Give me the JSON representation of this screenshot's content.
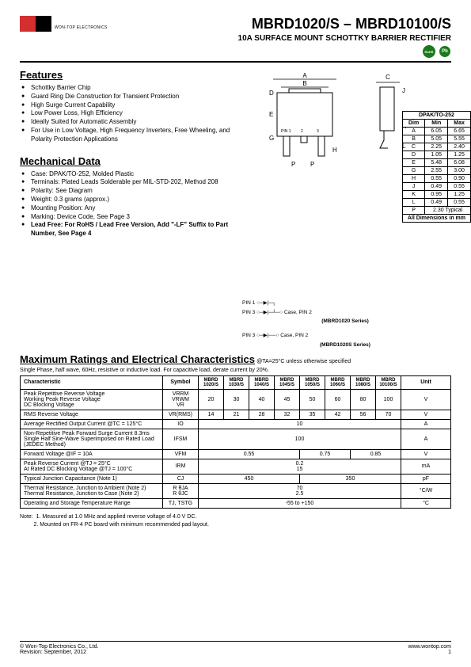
{
  "header": {
    "company": "WON-TOP ELECTRONICS",
    "title": "MBRD1020/S – MBRD10100/S",
    "subtitle": "10A SURFACE MOUNT SCHOTTKY BARRIER RECTIFIER",
    "rohs": "RoHS",
    "pb": "Pb"
  },
  "features": {
    "title": "Features",
    "items": [
      "Schottky Barrier Chip",
      "Guard Ring Die Construction for Transient Protection",
      "High Surge Current Capability",
      "Low Power Loss, High Efficiency",
      "Ideally Suited for Automatic Assembly",
      "For Use in Low Voltage, High Frequency Inverters, Free Wheeling, and Polarity Protection Applications"
    ]
  },
  "mechanical": {
    "title": "Mechanical Data",
    "items": [
      "Case: DPAK/TO-252, Molded Plastic",
      "Terminals: Plated Leads Solderable per MIL-STD-202, Method 208",
      "Polarity: See Diagram",
      "Weight: 0.3 grams (approx.)",
      "Mounting Position: Any",
      "Marking: Device Code, See Page 3"
    ],
    "lead_free": "Lead Free: For RoHS / Lead Free Version, Add \"-LF\" Suffix to Part Number, See Page 4"
  },
  "pin_labels": {
    "pin1": "PIN 1",
    "pin3": "PIN 3",
    "case": "Case, PIN 2",
    "series1": "(MBRD1020 Series)",
    "series2": "(MBRD1020S Series)"
  },
  "dim_table": {
    "title": "DPAK/TO-252",
    "headers": [
      "Dim",
      "Min",
      "Max"
    ],
    "rows": [
      [
        "A",
        "6.05",
        "6.65"
      ],
      [
        "B",
        "5.05",
        "5.55"
      ],
      [
        "C",
        "2.25",
        "2.40"
      ],
      [
        "D",
        "1.05",
        "1.25"
      ],
      [
        "E",
        "5.48",
        "6.08"
      ],
      [
        "G",
        "2.55",
        "3.00"
      ],
      [
        "H",
        "0.55",
        "0.90"
      ],
      [
        "J",
        "0.49",
        "0.55"
      ],
      [
        "K",
        "0.95",
        "1.25"
      ],
      [
        "L",
        "0.49",
        "0.55"
      ]
    ],
    "p_row": [
      "P",
      "2.30 Typical"
    ],
    "footer": "All Dimensions in mm"
  },
  "ratings": {
    "title": "Maximum Ratings and Electrical Characteristics",
    "condition": " @TA=25°C unless otherwise specified",
    "note": "Single Phase, half wave, 60Hz, resistive or inductive load. For capacitive load, derate current by 20%.",
    "headers": [
      "Characteristic",
      "Symbol",
      "MBRD 1020/S",
      "MBRD 1030/S",
      "MBRD 1040/S",
      "MBRD 1045/S",
      "MBRD 1050/S",
      "MBRD 1060/S",
      "MBRD 1080/S",
      "MBRD 10100/S",
      "Unit"
    ],
    "rows": [
      {
        "char": "Peak Repetitive Reverse Voltage\nWorking Peak Reverse Voltage\nDC Blocking Voltage",
        "sym": "VRRM\nVRWM\nVR",
        "vals": [
          "20",
          "30",
          "40",
          "45",
          "50",
          "60",
          "80",
          "100"
        ],
        "unit": "V"
      },
      {
        "char": "RMS Reverse Voltage",
        "sym": "VR(RMS)",
        "vals": [
          "14",
          "21",
          "28",
          "32",
          "35",
          "42",
          "56",
          "70"
        ],
        "unit": "V"
      },
      {
        "char": "Average Rectified Output Current    @TC = 125°C",
        "sym": "IO",
        "span": "10",
        "unit": "A"
      },
      {
        "char": "Non-Repetitive Peak Forward Surge Current 8.3ms Single Half Sine-Wave Superimposed on Rated Load (JEDEC Method)",
        "sym": "IFSM",
        "span": "100",
        "unit": "A"
      },
      {
        "char": "Forward Voltage                             @IF = 10A",
        "sym": "VFM",
        "spans": [
          {
            "v": "0.55",
            "c": 4
          },
          {
            "v": "0.75",
            "c": 2
          },
          {
            "v": "0.85",
            "c": 2
          }
        ],
        "unit": "V"
      },
      {
        "char": "Peak Reverse Current            @TJ = 25°C\nAt Rated DC Blocking Voltage    @TJ = 100°C",
        "sym": "IRM",
        "span2": [
          "0.2",
          "15"
        ],
        "unit": "mA"
      },
      {
        "char": "Typical Junction Capacitance (Note 1)",
        "sym": "CJ",
        "spans": [
          {
            "v": "450",
            "c": 4
          },
          {
            "v": "350",
            "c": 4
          }
        ],
        "unit": "pF"
      },
      {
        "char": "Thermal Resistance, Junction to Ambient (Note 2)\nThermal Resistance, Junction to Case (Note 2)",
        "sym": "R θJA\nR θJC",
        "span2": [
          "70",
          "2.5"
        ],
        "unit": "°C/W"
      },
      {
        "char": "Operating and Storage Temperature Range",
        "sym": "TJ, TSTG",
        "span": "-55 to +150",
        "unit": "°C"
      }
    ]
  },
  "notes": {
    "label": "Note:",
    "n1": "1. Measured at 1.0 MHz and applied reverse voltage of 4.0 V DC.",
    "n2": "2. Mounted on FR-4 PC board with minimum recommended pad layout."
  },
  "footer": {
    "copyright": "© Won-Top Electronics Co., Ltd.",
    "revision": "Revision: September, 2012",
    "url": "www.wontop.com",
    "page": "1"
  },
  "colors": {
    "red": "#d32f2f",
    "green": "#1a7a1a"
  }
}
